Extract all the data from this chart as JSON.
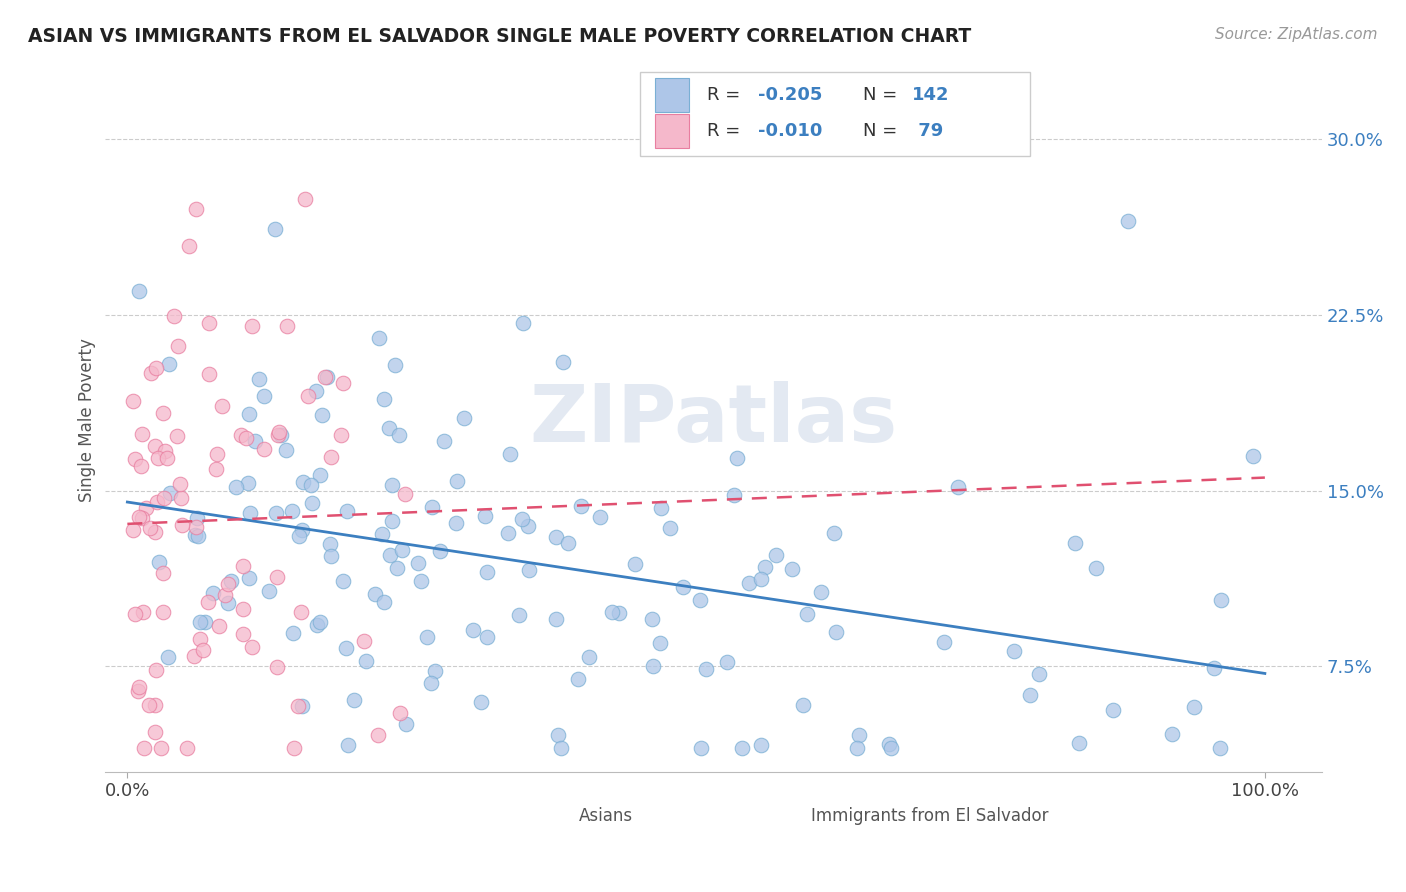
{
  "title": "ASIAN VS IMMIGRANTS FROM EL SALVADOR SINGLE MALE POVERTY CORRELATION CHART",
  "source": "Source: ZipAtlas.com",
  "ylabel": "Single Male Poverty",
  "yticks": [
    "7.5%",
    "15.0%",
    "22.5%",
    "30.0%"
  ],
  "ytick_vals": [
    0.075,
    0.15,
    0.225,
    0.3
  ],
  "ymin": 0.03,
  "ymax": 0.33,
  "xmin": -0.02,
  "xmax": 1.05,
  "color_asian_fill": "#aec6e8",
  "color_asian_edge": "#7aafd4",
  "color_salvador_fill": "#f5b8cb",
  "color_salvador_edge": "#e87ea0",
  "color_line_asian": "#3c7fc0",
  "color_line_salvador": "#e05070",
  "color_grid": "#cccccc",
  "watermark": "ZIPatlas",
  "label_asian": "Asians",
  "label_salvador": "Immigrants from El Salvador",
  "legend_r1": "-0.205",
  "legend_n1": "142",
  "legend_r2": "-0.010",
  "legend_n2": "79"
}
